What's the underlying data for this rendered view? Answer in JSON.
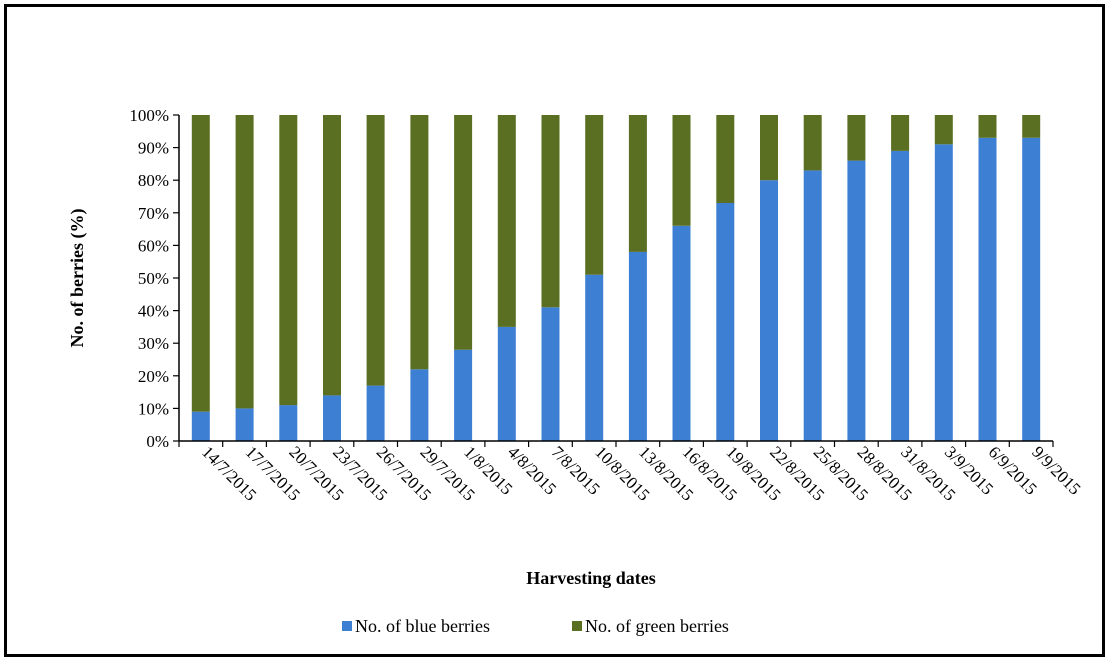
{
  "colors": {
    "blue": "#3d7fd3",
    "green": "#5a6f22",
    "axis": "#000000"
  },
  "chart_data": {
    "type": "bar",
    "stacked": true,
    "percent": true,
    "categories": [
      "14/7/2015",
      "17/7/2015",
      "20/7/2015",
      "23/7/2015",
      "26/7/2015",
      "29/7/2015",
      "1/8/2015",
      "4/8/2015",
      "7/8/2015",
      "10/8/2015",
      "13/8/2015",
      "16/8/2015",
      "19/8/2015",
      "22/8/2015",
      "25/8/2015",
      "28/8/2015",
      "31/8/2015",
      "3/9/2015",
      "6/9/2015",
      "9/9/2015"
    ],
    "series": [
      {
        "name": "No. of blue berries",
        "values": [
          9,
          10,
          11,
          14,
          17,
          22,
          28,
          35,
          41,
          51,
          58,
          66,
          73,
          80,
          83,
          86,
          89,
          91,
          93,
          93
        ]
      },
      {
        "name": "No. of green berries",
        "values": [
          91,
          90,
          89,
          86,
          83,
          78,
          72,
          65,
          59,
          49,
          42,
          34,
          27,
          20,
          17,
          14,
          11,
          9,
          7,
          7
        ]
      }
    ],
    "xlabel": "Harvesting dates",
    "ylabel": "No. of berries (%)",
    "ylim": [
      0,
      100
    ],
    "yticks": [
      "0%",
      "10%",
      "20%",
      "30%",
      "40%",
      "50%",
      "60%",
      "70%",
      "80%",
      "90%",
      "100%"
    ],
    "grid": false,
    "legend_position": "bottom"
  }
}
